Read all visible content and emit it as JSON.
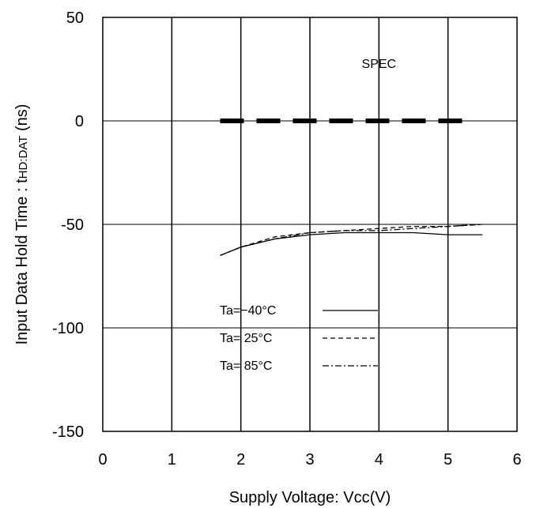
{
  "chart_data": {
    "type": "line",
    "title": "",
    "xlabel": "Supply Voltage: Vcc(V)",
    "ylabel": "Input Data Hold Time : t",
    "ylabel_subscript": "HD:DAT",
    "ylabel_unit": " (ns)",
    "xlim": [
      0,
      6
    ],
    "ylim": [
      -150,
      50
    ],
    "xticks": [
      0,
      1,
      2,
      3,
      4,
      5,
      6
    ],
    "yticks": [
      50,
      0,
      -50,
      -100,
      -150
    ],
    "grid": true,
    "series": [
      {
        "name": "Ta=−40°C",
        "dash": "solid",
        "x": [
          1.7,
          2.0,
          2.5,
          3.0,
          3.5,
          4.0,
          4.5,
          5.0,
          5.5
        ],
        "y": [
          -65,
          -61,
          -57,
          -55,
          -54,
          -54,
          -54,
          -55,
          -55
        ]
      },
      {
        "name": "Ta= 25°C",
        "dash": "dashed",
        "x": [
          1.7,
          2.0,
          2.5,
          3.0,
          3.5,
          4.0,
          4.5,
          5.0,
          5.5
        ],
        "y": [
          -65,
          -61,
          -56,
          -54,
          -53,
          -52,
          -51,
          -51,
          -50
        ]
      },
      {
        "name": "Ta= 85°C",
        "dash": "dashdot",
        "x": [
          1.7,
          2.0,
          2.5,
          3.0,
          3.5,
          4.0,
          4.5,
          5.0,
          5.5
        ],
        "y": [
          -65,
          -61,
          -57,
          -54,
          -53,
          -53,
          -52,
          -51,
          -50
        ]
      }
    ],
    "spec": {
      "label": "SPEC",
      "x": [
        1.7,
        5.3
      ],
      "y": 0
    },
    "legend": {
      "placement": "lower-center"
    }
  }
}
